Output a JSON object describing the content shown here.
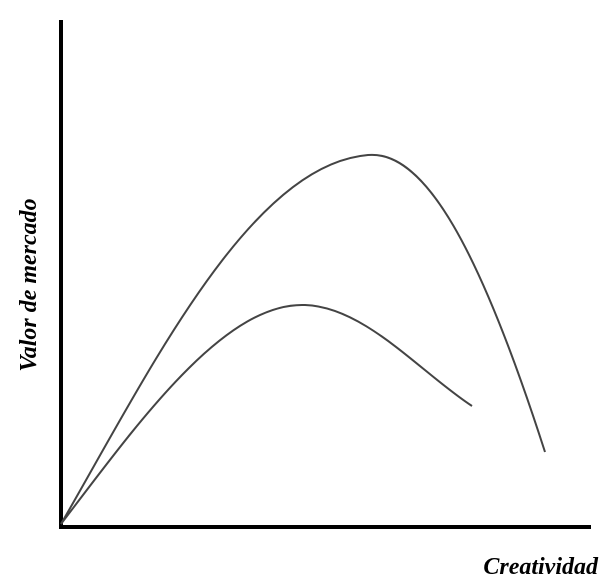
{
  "axes": {
    "y_label": "Valor de mercado",
    "x_label": "Creatividad"
  }
}
